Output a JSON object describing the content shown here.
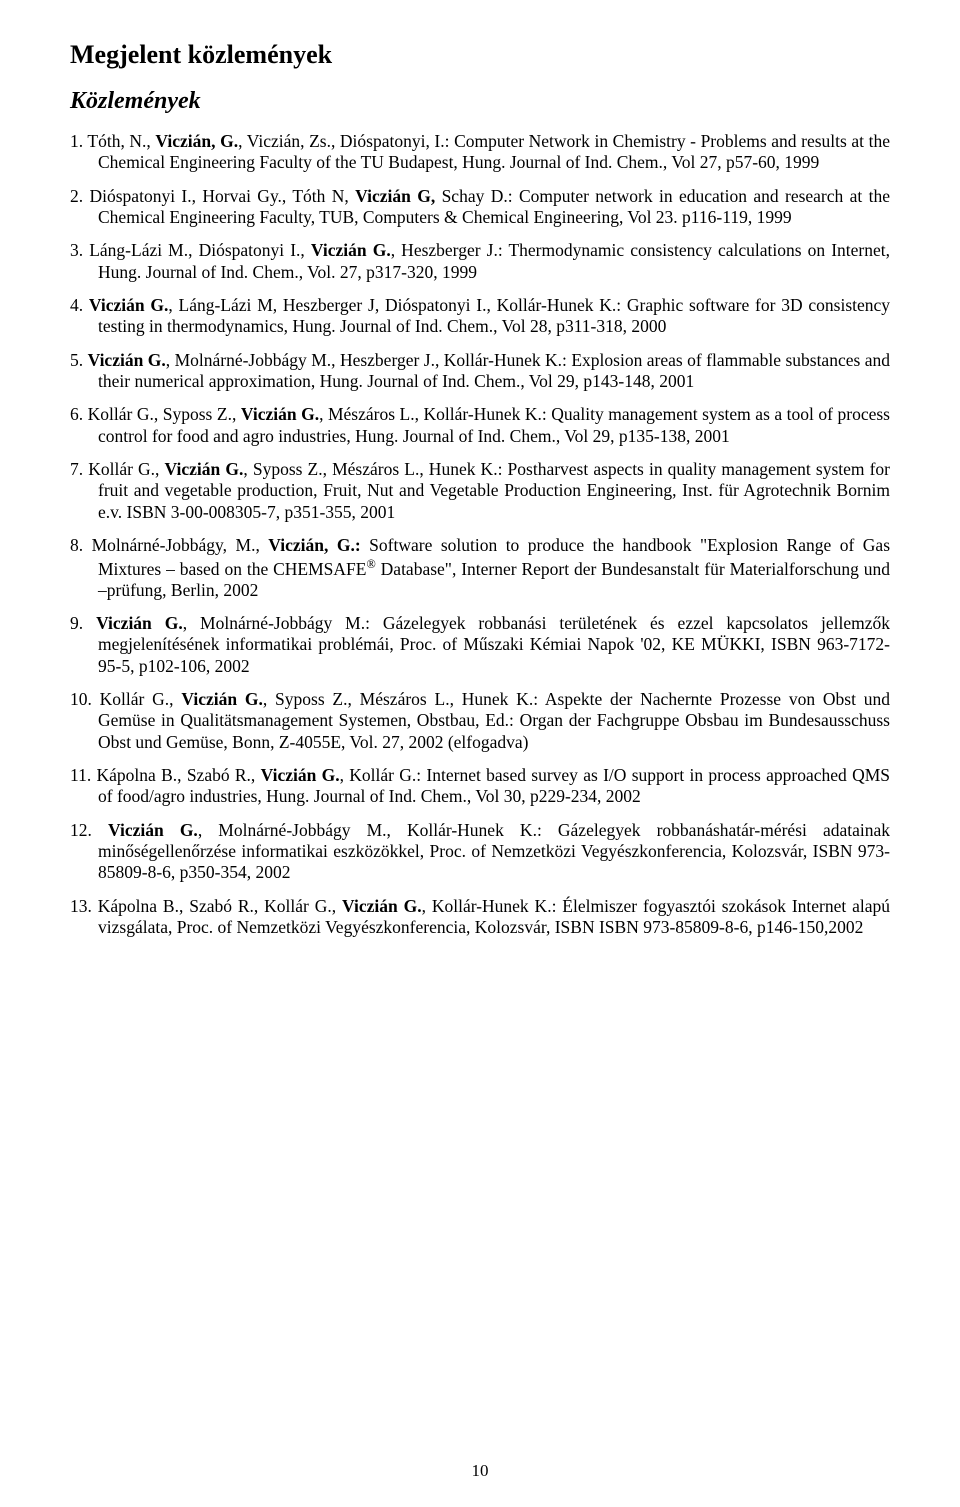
{
  "heading_main": "Megjelent közlemények",
  "heading_sub": "Közlemények",
  "page_number": "10",
  "typography": {
    "font_family": "Times New Roman",
    "body_fontsize_pt": 13,
    "heading_main_fontsize_pt": 18,
    "heading_sub_fontsize_pt": 17,
    "line_height": 1.22,
    "text_align": "justify",
    "text_color": "#000000",
    "background_color": "#ffffff"
  },
  "references": [
    {
      "html": "Tóth, N., <strong>Viczián, G.</strong>, Viczián, Zs., Dióspatonyi, I.: Computer Network in Chemistry - Problems and results at the Chemical Engineering Faculty of the TU Budapest, Hung. Journal of Ind. Chem., Vol 27, p57-60, 1999"
    },
    {
      "html": "Dióspatonyi I., Horvai Gy., Tóth N, <strong>Viczián G,</strong> Schay D.: Computer network in education and research at the Chemical Engineering Faculty, TUB, Computers &amp; Chemical Engineering, Vol 23. p116-119, 1999"
    },
    {
      "html": "Láng-Lázi M., Dióspatonyi I., <strong>Viczián G.</strong>, Heszberger J.: Thermodynamic consistency calculations on Internet, Hung. Journal of Ind. Chem., Vol. 27, p317-320, 1999"
    },
    {
      "html": "<strong>Viczián G.</strong>, Láng-Lázi M, Heszberger J, Dióspatonyi I., Kollár-Hunek K.: Graphic software for 3D consistency testing in thermodynamics, Hung. Journal of Ind. Chem., Vol 28, p311-318, 2000"
    },
    {
      "html": "<strong>Viczián G.</strong>, Molnárné-Jobbágy M., Heszberger J., Kollár-Hunek K.: Explosion areas of flammable substances and their numerical approximation, Hung. Journal of  Ind. Chem., Vol 29, p143-148, 2001"
    },
    {
      "html": "Kollár G., Syposs Z., <strong>Viczián G.</strong>, Mészáros L., Kollár-Hunek K.: Quality management system as a tool of process control for food and agro industries, Hung. Journal of Ind. Chem., Vol 29, p135-138, 2001"
    },
    {
      "html": "Kollár G., <strong>Viczián G.</strong>, Syposs Z., Mészáros L., Hunek K.: Postharvest aspects in quality management system for fruit and vegetable production, Fruit, Nut and Vegetable Production Engineering, Inst. für Agrotechnik Bornim e.v. ISBN 3-00-008305-7, p351-355,  2001"
    },
    {
      "html": "Molnárné-Jobbágy, M., <strong>Viczián, G.:</strong>  Software solution to produce the handbook \"Explosion Range of Gas Mixtures – based on the CHEMSAFE<sup>®</sup> Database\", Interner Report der Bundesanstalt für Materialforschung und –prüfung,  Berlin, 2002"
    },
    {
      "html": "<strong>Viczián G.</strong>, Molnárné-Jobbágy M.: Gázelegyek robbanási területének és ezzel kapcsolatos jellemzők megjelenítésének informatikai problémái, Proc. of Műszaki Kémiai Napok '02, KE MÜKKI, ISBN 963-7172-95-5, p102-106, 2002"
    },
    {
      "html": "Kollár G., <strong>Viczián G.</strong>, Syposs Z., Mészáros L., Hunek K.: Aspekte der Nachernte Prozesse von Obst und Gemüse in Qualitätsmanagement Systemen, Obstbau, Ed.: Organ der Fachgruppe Obsbau im Bundesausschuss Obst und Gemüse, Bonn,  Z-4055E,  Vol. 27, 2002 (elfogadva)"
    },
    {
      "html": "Kápolna B., Szabó R., <strong>Viczián G.</strong>, Kollár G.: Internet based survey as I/O support in process approached QMS of food/agro industries, Hung. Journal of Ind. Chem., Vol 30, p229-234, 2002"
    },
    {
      "html": "<strong>Viczián G.</strong>, Molnárné-Jobbágy M., Kollár-Hunek K.:  Gázelegyek robbanáshatár-mérési adatainak minőségellenőrzése informatikai eszközökkel, Proc. of Nemzetközi Vegyészkonferencia, Kolozsvár, ISBN 973-85809-8-6, p350-354, 2002"
    },
    {
      "html": "Kápolna B., Szabó R., Kollár G., <strong>Viczián G.</strong>, Kollár-Hunek K.: Élelmiszer fogyasztói szokások Internet alapú vizsgálata, Proc. of Nemzetközi Vegyészkonferencia, Kolozsvár, ISBN ISBN 973-85809-8-6, p146-150,2002"
    }
  ]
}
